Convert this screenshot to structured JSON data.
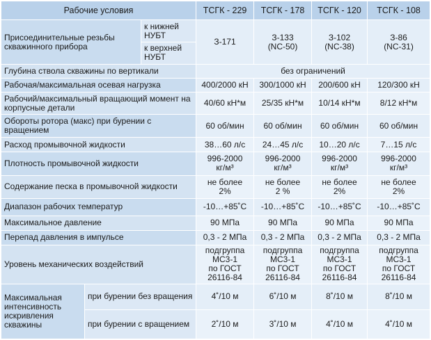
{
  "header": {
    "conditions": "Рабочие условия",
    "models": [
      "ТСГК - 229",
      "ТСГК - 178",
      "ТСГК - 120",
      "ТСГК - 108"
    ]
  },
  "threads": {
    "label": "Присоединительные резьбы скважинного прибора",
    "sub": [
      "к нижней НУБТ",
      "к верхней НУБТ"
    ],
    "values": [
      "З-171",
      "З-133\n(NC-50)",
      "З-102\n(NC-38)",
      "З-86\n(NC-31)"
    ]
  },
  "depth": {
    "label": "Глубина ствола скважины по вертикали",
    "value": "без ограничений"
  },
  "rows": [
    {
      "name": "axial-load",
      "label": "Рабочая/максимальная осевая нагрузка",
      "values": [
        "400/2000 кН",
        "300/1000 кН",
        "200/600 кН",
        "120/300 кН"
      ]
    },
    {
      "name": "torque",
      "label": "Рабочий/максимальный вращающий момент на корпусные детали",
      "values": [
        "40/60 кН*м",
        "25/35 кН*м",
        "10/14 кН*м",
        "8/12 кН*м"
      ]
    },
    {
      "name": "rotor-speed",
      "label": "Обороты ротора (макс) при бурении с вращением",
      "values": [
        "60 об/мин",
        "60 об/мин",
        "60 об/мин",
        "60 об/мин"
      ]
    },
    {
      "name": "flow-rate",
      "label": "Расход промывочной жидкости",
      "values": [
        "38…60 л/с",
        "24…45 л/с",
        "10…20 л/с",
        "7…15 л/с"
      ]
    },
    {
      "name": "fluid-density",
      "label": "Плотность промывочной жидкости",
      "values": [
        "996-2000\nкг/м³",
        "996-2000\nкг/м³",
        "996-2000\nкг/м³",
        "996-2000\nкг/м³"
      ]
    },
    {
      "name": "sand-content",
      "label": "Содержание песка в промывочной жидкости",
      "values": [
        "не более\n2%",
        "не более\n2 %",
        "не более\n2%",
        "не более\n2%"
      ]
    },
    {
      "name": "temperature",
      "label": "Диапазон рабочих температур",
      "values": [
        "-10…+85˚С",
        "-10…+85˚С",
        "-10…+85˚С",
        "-10…+85˚С"
      ]
    },
    {
      "name": "max-pressure",
      "label": "Максимальное давление",
      "values": [
        "90 МПа",
        "90 МПа",
        "90 МПа",
        "90 МПа"
      ]
    },
    {
      "name": "pressure-drop",
      "label": "Перепад давления в импульсе",
      "values": [
        "0,3 - 2 МПа",
        "0,3 - 2 МПа",
        "0,3 - 2 МПа",
        "0,3 - 2 МПа"
      ]
    },
    {
      "name": "mechanical",
      "label": "Уровень механических воздействий",
      "values": [
        "подгруппа\nМС3-1\nпо ГОСТ\n26116-84",
        "подгруппа\nМС3-1\nпо ГОСТ\n26116-84",
        "подгруппа\nМС3-1\nпо ГОСТ\n26116-84",
        "подгруппа\nМС3-1\nпо ГОСТ\n26116-84"
      ]
    }
  ],
  "curvature": {
    "label": "Максимальная интенсивность искривления скважины",
    "sub": [
      "при бурении без вращения",
      "при бурении с вращением"
    ],
    "no_rotation": [
      "4˚/10 м",
      "6˚/10 м",
      "8˚/10 м",
      "8˚/10 м"
    ],
    "rotation": [
      "2˚/10 м",
      "3˚/10 м",
      "4˚/10 м",
      "4˚/10 м"
    ]
  }
}
